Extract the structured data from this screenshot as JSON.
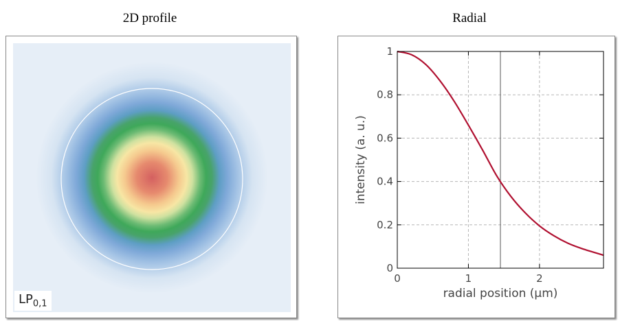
{
  "left": {
    "title": "2D profile",
    "mode_label_main": "LP",
    "mode_label_sub": "0,1"
  },
  "right": {
    "title": "Radial"
  },
  "chart_data": {
    "type": "line",
    "title": "Radial",
    "xlabel": "radial position (µm)",
    "ylabel": "intensity (a. u.)",
    "xlim": [
      0,
      2.9
    ],
    "ylim": [
      0,
      1
    ],
    "x_ticks": [
      "0",
      "1",
      "2"
    ],
    "y_ticks": [
      "0",
      "0.2",
      "0.4",
      "0.6",
      "0.8",
      "1"
    ],
    "grid": true,
    "line_color": "#b01030",
    "marker_x": 1.45,
    "series": [
      {
        "x": [
          0,
          0.2,
          0.4,
          0.6,
          0.8,
          1.0,
          1.2,
          1.4,
          1.6,
          1.8,
          2.0,
          2.2,
          2.4,
          2.6,
          2.9
        ],
        "values": [
          1.0,
          0.985,
          0.94,
          0.865,
          0.77,
          0.66,
          0.545,
          0.425,
          0.33,
          0.255,
          0.195,
          0.15,
          0.115,
          0.09,
          0.06
        ]
      }
    ]
  }
}
